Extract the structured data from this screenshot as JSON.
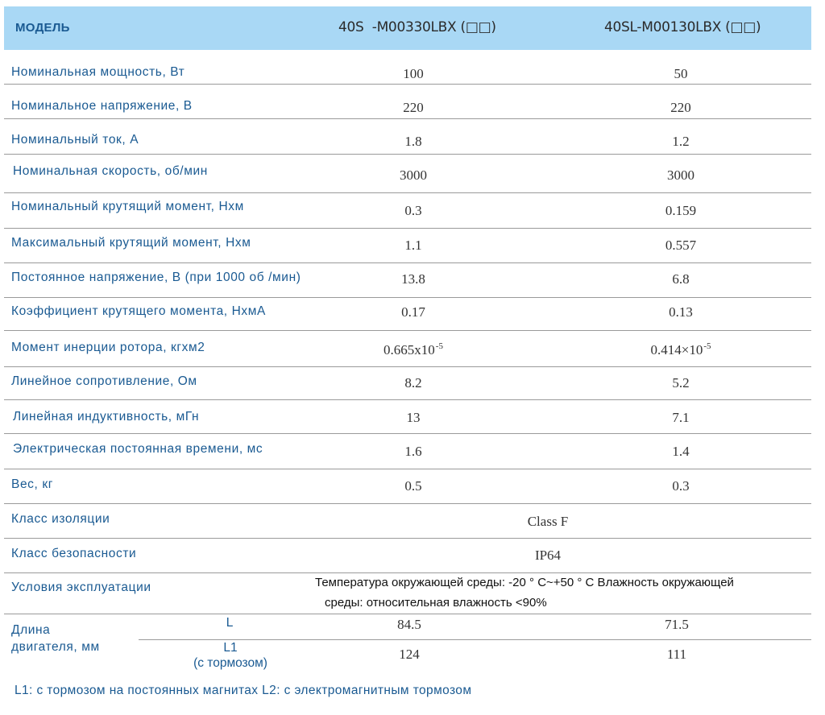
{
  "header": {
    "model_label": "МОДЕЛЬ",
    "col1": "40S  -M00330LBX (□□)",
    "col2": "40SL-M00130LBX (□□)"
  },
  "rows": [
    {
      "label": "Номинальная мощность, Вт",
      "v1": "100",
      "v2": "50"
    },
    {
      "label": "Номинальное напряжение, В",
      "v1": "220",
      "v2": "220"
    },
    {
      "label": "Номинальный ток, А",
      "v1": "1.8",
      "v2": "1.2"
    },
    {
      "label": "Номинальная скорость, об/мин",
      "v1": "3000",
      "v2": "3000"
    },
    {
      "label": "Номинальный крутящий момент, Нхм",
      "v1": "0.3",
      "v2": "0.159"
    },
    {
      "label": "Максимальный крутящий момент, Нхм",
      "v1": "1.1",
      "v2": "0.557"
    },
    {
      "label": "Постоянное напряжение, В (при 1000 об /мин)",
      "v1": "13.8",
      "v2": "6.8"
    },
    {
      "label": "Коэффициент крутящего момента, НхмА",
      "v1": "0.17",
      "v2": "0.13"
    },
    {
      "label": "Момент инерции ротора, кгхм2",
      "v1": "0.665x10",
      "v1_exp": "-5",
      "v2": "0.414×10",
      "v2_exp": "-5"
    },
    {
      "label": "Линейное сопротивление,  Ом",
      "v1": "8.2",
      "v2": "5.2"
    },
    {
      "label": "Линейная индуктивность,  мГн",
      "v1": "13",
      "v2": "7.1"
    },
    {
      "label": "Электрическая постоянная времени, мс",
      "v1": "1.6",
      "v2": "1.4"
    },
    {
      "label": "Вес, кг",
      "v1": "0.5",
      "v2": "0.3"
    }
  ],
  "insulation": {
    "label": "Класс изоляции",
    "value": "Class F"
  },
  "safety": {
    "label": "Класс безопасности",
    "value": "IP64"
  },
  "operating": {
    "label": "Условия эксплуатации",
    "line1": "Температура окружающей среды: -20 ° C~+50 ° C  Влажность окружающей",
    "line2": "среды: относительная влажность <90%"
  },
  "length": {
    "label_line1": "Длина",
    "label_line2": "двигателя, мм",
    "L": {
      "label": "L",
      "v1": "84.5",
      "v2": "71.5"
    },
    "L1": {
      "label_line1": "L1",
      "label_line2": "(с тормозом)",
      "v1": "124",
      "v2": "111"
    }
  },
  "footnote": "L1: с тормозом на постоянных магнитах   L2:   с электромагнитным тормозом"
}
